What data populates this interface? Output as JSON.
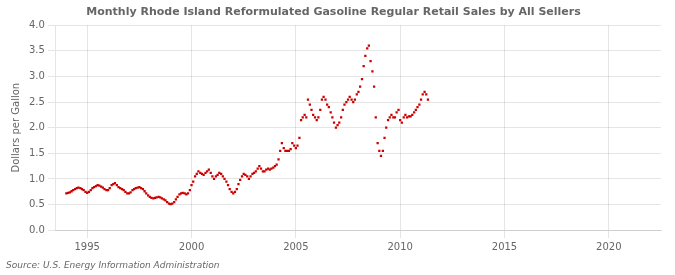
{
  "chart_data": {
    "type": "scatter",
    "title": "Monthly Rhode Island Reformulated Gasoline Regular Retail Sales by All Sellers",
    "ylabel": "Dollars per Gallon",
    "annotations": [
      "Source: U.S. Energy Information Administration"
    ],
    "color": "#cc0000",
    "marker": "square",
    "grid": true,
    "xlim": [
      1993.5,
      2022.5
    ],
    "xticks": [
      1995,
      2000,
      2005,
      2010,
      2015,
      2020
    ],
    "ylim": [
      0.0,
      4.0
    ],
    "yticks": [
      {
        "value": 0.0,
        "label": "0.0"
      },
      0.5,
      {
        "value": 1.0,
        "label": "1.0"
      },
      1.5,
      {
        "value": 2.0,
        "label": "2.0"
      },
      2.5,
      {
        "value": 3.0,
        "label": "3.0"
      },
      3.5,
      {
        "value": 4.0,
        "label": "4.0"
      }
    ],
    "x": [
      1994.0,
      1994.08,
      1994.17,
      1994.25,
      1994.33,
      1994.42,
      1994.5,
      1994.58,
      1994.67,
      1994.75,
      1994.83,
      1994.92,
      1995.0,
      1995.08,
      1995.17,
      1995.25,
      1995.33,
      1995.42,
      1995.5,
      1995.58,
      1995.67,
      1995.75,
      1995.83,
      1995.92,
      1996.0,
      1996.08,
      1996.17,
      1996.25,
      1996.33,
      1996.42,
      1996.5,
      1996.58,
      1996.67,
      1996.75,
      1996.83,
      1996.92,
      1997.0,
      1997.08,
      1997.17,
      1997.25,
      1997.33,
      1997.42,
      1997.5,
      1997.58,
      1997.67,
      1997.75,
      1997.83,
      1997.92,
      1998.0,
      1998.08,
      1998.17,
      1998.25,
      1998.33,
      1998.42,
      1998.5,
      1998.58,
      1998.67,
      1998.75,
      1998.83,
      1998.92,
      1999.0,
      1999.08,
      1999.17,
      1999.25,
      1999.33,
      1999.42,
      1999.5,
      1999.58,
      1999.67,
      1999.75,
      1999.83,
      1999.92,
      2000.0,
      2000.08,
      2000.17,
      2000.25,
      2000.33,
      2000.42,
      2000.5,
      2000.58,
      2000.67,
      2000.75,
      2000.83,
      2000.92,
      2001.0,
      2001.08,
      2001.17,
      2001.25,
      2001.33,
      2001.42,
      2001.5,
      2001.58,
      2001.67,
      2001.75,
      2001.83,
      2001.92,
      2002.0,
      2002.08,
      2002.17,
      2002.25,
      2002.33,
      2002.42,
      2002.5,
      2002.58,
      2002.67,
      2002.75,
      2002.83,
      2002.92,
      2003.0,
      2003.08,
      2003.17,
      2003.25,
      2003.33,
      2003.42,
      2003.5,
      2003.58,
      2003.67,
      2003.75,
      2003.83,
      2003.92,
      2004.0,
      2004.08,
      2004.17,
      2004.25,
      2004.33,
      2004.42,
      2004.5,
      2004.58,
      2004.67,
      2004.75,
      2004.83,
      2004.92,
      2005.0,
      2005.08,
      2005.17,
      2005.25,
      2005.33,
      2005.42,
      2005.5,
      2005.58,
      2005.67,
      2005.75,
      2005.83,
      2005.92,
      2006.0,
      2006.08,
      2006.17,
      2006.25,
      2006.33,
      2006.42,
      2006.5,
      2006.58,
      2006.67,
      2006.75,
      2006.83,
      2006.92,
      2007.0,
      2007.08,
      2007.17,
      2007.25,
      2007.33,
      2007.42,
      2007.5,
      2007.58,
      2007.67,
      2007.75,
      2007.83,
      2007.92,
      2008.0,
      2008.08,
      2008.17,
      2008.25,
      2008.33,
      2008.42,
      2008.5,
      2008.58,
      2008.67,
      2008.75,
      2008.83,
      2008.92,
      2009.0,
      2009.08,
      2009.17,
      2009.25,
      2009.33,
      2009.42,
      2009.5,
      2009.58,
      2009.67,
      2009.75,
      2009.83,
      2009.92,
      2010.0,
      2010.08,
      2010.17,
      2010.25,
      2010.33,
      2010.42,
      2010.5,
      2010.58,
      2010.67,
      2010.75,
      2010.83,
      2010.92,
      2011.0,
      2011.08,
      2011.17,
      2011.25,
      2011.33
    ],
    "values": [
      0.72,
      0.73,
      0.74,
      0.76,
      0.78,
      0.8,
      0.82,
      0.83,
      0.82,
      0.8,
      0.78,
      0.75,
      0.73,
      0.75,
      0.78,
      0.82,
      0.84,
      0.86,
      0.88,
      0.87,
      0.85,
      0.83,
      0.8,
      0.78,
      0.78,
      0.82,
      0.88,
      0.9,
      0.92,
      0.88,
      0.84,
      0.82,
      0.8,
      0.78,
      0.75,
      0.72,
      0.72,
      0.74,
      0.78,
      0.8,
      0.82,
      0.83,
      0.84,
      0.82,
      0.8,
      0.76,
      0.72,
      0.68,
      0.65,
      0.63,
      0.62,
      0.63,
      0.64,
      0.65,
      0.64,
      0.62,
      0.6,
      0.58,
      0.55,
      0.52,
      0.51,
      0.52,
      0.55,
      0.6,
      0.65,
      0.7,
      0.72,
      0.73,
      0.72,
      0.7,
      0.72,
      0.78,
      0.88,
      0.95,
      1.05,
      1.1,
      1.15,
      1.12,
      1.1,
      1.08,
      1.12,
      1.15,
      1.18,
      1.12,
      1.05,
      1.0,
      1.05,
      1.08,
      1.12,
      1.1,
      1.05,
      1.0,
      0.95,
      0.88,
      0.8,
      0.75,
      0.72,
      0.75,
      0.8,
      0.9,
      0.98,
      1.05,
      1.1,
      1.08,
      1.05,
      1.0,
      1.05,
      1.1,
      1.12,
      1.15,
      1.2,
      1.25,
      1.2,
      1.15,
      1.15,
      1.18,
      1.2,
      1.18,
      1.2,
      1.22,
      1.25,
      1.28,
      1.38,
      1.55,
      1.7,
      1.6,
      1.55,
      1.55,
      1.55,
      1.58,
      1.7,
      1.65,
      1.6,
      1.65,
      1.8,
      2.15,
      2.2,
      2.25,
      2.2,
      2.55,
      2.45,
      2.35,
      2.25,
      2.2,
      2.15,
      2.2,
      2.35,
      2.55,
      2.6,
      2.55,
      2.45,
      2.4,
      2.3,
      2.2,
      2.1,
      2.0,
      2.05,
      2.1,
      2.2,
      2.35,
      2.45,
      2.5,
      2.55,
      2.6,
      2.55,
      2.5,
      2.55,
      2.65,
      2.7,
      2.8,
      2.95,
      3.2,
      3.4,
      3.55,
      3.6,
      3.3,
      3.1,
      2.8,
      2.2,
      1.7,
      1.55,
      1.45,
      1.55,
      1.8,
      2.0,
      2.15,
      2.2,
      2.25,
      2.2,
      2.2,
      2.3,
      2.35,
      2.15,
      2.1,
      2.2,
      2.25,
      2.2,
      2.22,
      2.22,
      2.25,
      2.3,
      2.35,
      2.4,
      2.45,
      2.55,
      2.65,
      2.7,
      2.65,
      2.55
    ]
  }
}
